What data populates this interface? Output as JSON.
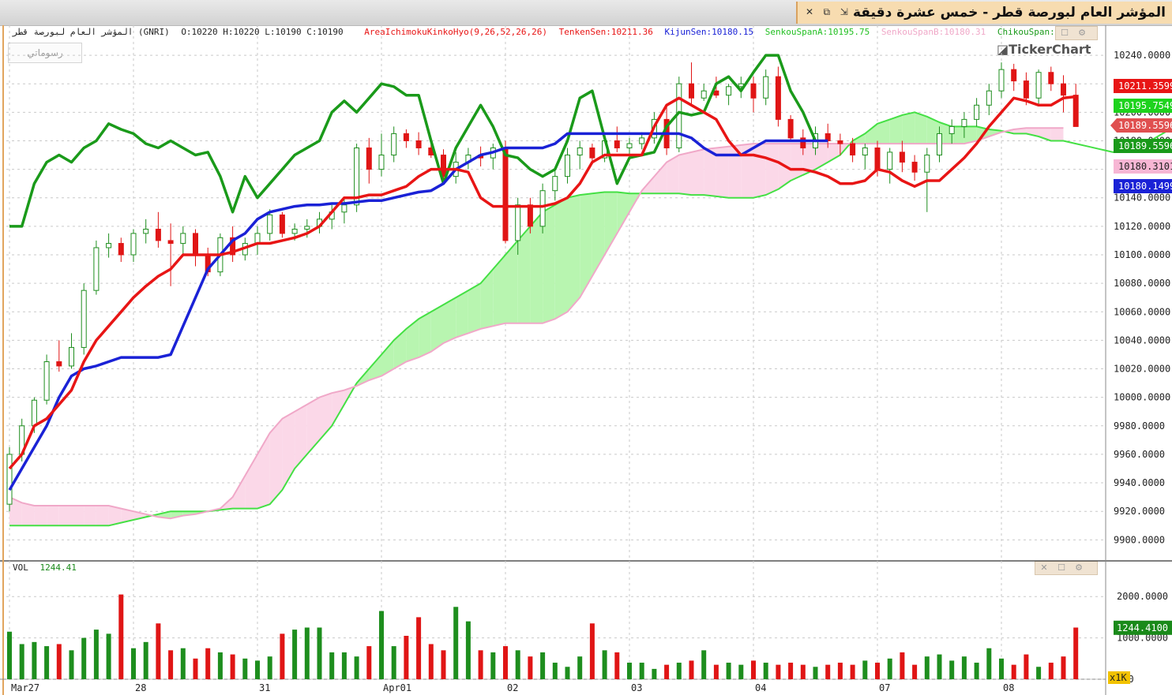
{
  "window": {
    "title": "المؤشر العام لبورصة قطر - خمس عشرة دقيقة",
    "buttons": [
      "✕",
      "⧉",
      "⇲"
    ]
  },
  "legend": {
    "symbol": "المؤشر العام لبورصة قطر (GNRI)",
    "ohlc": "O:10220  H:10220  L:10190  C:10190",
    "indicator": "AreaIchimokuKinkoHyo(9,26,52,26,26)",
    "tenkan": "TenkenSen:10211.36",
    "kijun": "KijunSen:10180.15",
    "spanA": "SenkouSpanA:10195.75",
    "spanB": "SenkouSpanB:10180.31",
    "chikou": "ChikouSpan:10"
  },
  "drawings_button": "رسوماتي",
  "brand": "TickerChart",
  "volume_label": {
    "name": "VOL",
    "value": "1244.41"
  },
  "multiplier_badge": "x1K",
  "colors": {
    "tenkan": "#e81515",
    "kijun": "#1a22d6",
    "spanA": "#22a722",
    "spanB": "#f0a8c8",
    "chikou": "#1a9a1a",
    "up": "#1e8e1e",
    "down": "#e01515",
    "cloud_bull": "#b8f5b0",
    "cloud_bear": "#fbd8e8"
  },
  "chart_data": {
    "type": "candlestick",
    "title": "",
    "y_axis": {
      "ticks": [
        "9900.0000",
        "9920.0000",
        "9940.0000",
        "9960.0000",
        "9980.0000",
        "10000.0000",
        "10020.0000",
        "10040.0000",
        "10060.0000",
        "10080.0000",
        "10100.0000",
        "10120.0000",
        "10140.0000",
        "10160.0000",
        "10180.0000",
        "10200.0000",
        "10220.0000",
        "10240.0000"
      ],
      "ylim": [
        9888,
        10250
      ]
    },
    "x_axis": {
      "labels": [
        "Mar27",
        "28",
        "31",
        "Apr01",
        "02",
        "03",
        "04",
        "07",
        "08"
      ],
      "label_index": [
        0,
        10,
        20,
        30,
        40,
        50,
        60,
        70,
        80
      ]
    },
    "value_badges": [
      {
        "value": "10211.3599",
        "color": "#e81515"
      },
      {
        "value": "10195.7549",
        "color": "#1dd31d"
      },
      {
        "value": "10189.5596",
        "color": "#e05050"
      },
      {
        "value": "10189.5596",
        "color": "#1a9a1a"
      },
      {
        "value": "10180.3101",
        "color": "#f7b6d4"
      },
      {
        "value": "10180.1499",
        "color": "#1a22d6"
      }
    ],
    "candles": [
      [
        9925,
        9965,
        9920,
        9960
      ],
      [
        9960,
        9985,
        9955,
        9980
      ],
      [
        9980,
        10000,
        9975,
        9998
      ],
      [
        9998,
        10030,
        9995,
        10025
      ],
      [
        10025,
        10040,
        10018,
        10022
      ],
      [
        10022,
        10045,
        10020,
        10035
      ],
      [
        10035,
        10080,
        10030,
        10075
      ],
      [
        10075,
        10110,
        10072,
        10105
      ],
      [
        10105,
        10115,
        10098,
        10108
      ],
      [
        10108,
        10112,
        10095,
        10100
      ],
      [
        10100,
        10118,
        10095,
        10115
      ],
      [
        10115,
        10125,
        10108,
        10118
      ],
      [
        10118,
        10130,
        10105,
        10110
      ],
      [
        10110,
        10122,
        10078,
        10108
      ],
      [
        10108,
        10120,
        10100,
        10115
      ],
      [
        10115,
        10118,
        10092,
        10100
      ],
      [
        10100,
        10105,
        10085,
        10088
      ],
      [
        10088,
        10115,
        10085,
        10112
      ],
      [
        10112,
        10120,
        10095,
        10100
      ],
      [
        10100,
        10112,
        10096,
        10108
      ],
      [
        10108,
        10120,
        10100,
        10115
      ],
      [
        10115,
        10132,
        10110,
        10128
      ],
      [
        10128,
        10130,
        10112,
        10115
      ],
      [
        10115,
        10122,
        10110,
        10118
      ],
      [
        10118,
        10125,
        10112,
        10120
      ],
      [
        10120,
        10130,
        10115,
        10125
      ],
      [
        10125,
        10135,
        10118,
        10130
      ],
      [
        10130,
        10140,
        10122,
        10135
      ],
      [
        10135,
        10178,
        10130,
        10175
      ],
      [
        10175,
        10182,
        10150,
        10160
      ],
      [
        10160,
        10185,
        10155,
        10170
      ],
      [
        10170,
        10190,
        10165,
        10185
      ],
      [
        10185,
        10188,
        10175,
        10180
      ],
      [
        10180,
        10186,
        10170,
        10175
      ],
      [
        10175,
        10180,
        10168,
        10170
      ],
      [
        10170,
        10174,
        10150,
        10155
      ],
      [
        10155,
        10172,
        10150,
        10165
      ],
      [
        10165,
        10175,
        10160,
        10170
      ],
      [
        10170,
        10176,
        10162,
        10168
      ],
      [
        10168,
        10178,
        10160,
        10175
      ],
      [
        10175,
        10180,
        10108,
        10110
      ],
      [
        10110,
        10140,
        10100,
        10135
      ],
      [
        10135,
        10140,
        10115,
        10120
      ],
      [
        10120,
        10150,
        10115,
        10145
      ],
      [
        10145,
        10160,
        10138,
        10155
      ],
      [
        10155,
        10175,
        10150,
        10170
      ],
      [
        10170,
        10180,
        10160,
        10175
      ],
      [
        10175,
        10178,
        10165,
        10168
      ],
      [
        10168,
        10185,
        10165,
        10180
      ],
      [
        10180,
        10190,
        10172,
        10175
      ],
      [
        10175,
        10182,
        10170,
        10178
      ],
      [
        10178,
        10186,
        10174,
        10182
      ],
      [
        10182,
        10200,
        10178,
        10195
      ],
      [
        10195,
        10205,
        10170,
        10175
      ],
      [
        10175,
        10225,
        10172,
        10220
      ],
      [
        10220,
        10235,
        10205,
        10210
      ],
      [
        10210,
        10220,
        10208,
        10215
      ],
      [
        10215,
        10225,
        10210,
        10212
      ],
      [
        10212,
        10220,
        10205,
        10218
      ],
      [
        10218,
        10225,
        10210,
        10220
      ],
      [
        10220,
        10225,
        10200,
        10210
      ],
      [
        10210,
        10230,
        10205,
        10225
      ],
      [
        10225,
        10232,
        10190,
        10195
      ],
      [
        10195,
        10198,
        10180,
        10182
      ],
      [
        10182,
        10188,
        10170,
        10175
      ],
      [
        10175,
        10190,
        10170,
        10185
      ],
      [
        10185,
        10192,
        10175,
        10180
      ],
      [
        10180,
        10185,
        10170,
        10178
      ],
      [
        10178,
        10182,
        10165,
        10170
      ],
      [
        10170,
        10178,
        10160,
        10175
      ],
      [
        10175,
        10180,
        10155,
        10160
      ],
      [
        10160,
        10175,
        10150,
        10172
      ],
      [
        10172,
        10180,
        10158,
        10165
      ],
      [
        10165,
        10170,
        10152,
        10158
      ],
      [
        10158,
        10175,
        10130,
        10170
      ],
      [
        10170,
        10190,
        10165,
        10185
      ],
      [
        10185,
        10195,
        10178,
        10190
      ],
      [
        10190,
        10200,
        10182,
        10195
      ],
      [
        10195,
        10210,
        10190,
        10205
      ],
      [
        10205,
        10220,
        10198,
        10215
      ],
      [
        10215,
        10235,
        10210,
        10230
      ],
      [
        10230,
        10234,
        10215,
        10222
      ],
      [
        10222,
        10228,
        10205,
        10210
      ],
      [
        10210,
        10230,
        10205,
        10228
      ],
      [
        10228,
        10232,
        10215,
        10220
      ],
      [
        10220,
        10226,
        10200,
        10212
      ],
      [
        10212,
        10220,
        10190,
        10190
      ]
    ],
    "tenkan": [
      9950,
      9960,
      9980,
      9985,
      9995,
      10005,
      10025,
      10040,
      10050,
      10060,
      10070,
      10078,
      10085,
      10090,
      10100,
      10100,
      10100,
      10100,
      10102,
      10105,
      10108,
      10108,
      10110,
      10112,
      10115,
      10120,
      10130,
      10140,
      10140,
      10142,
      10142,
      10145,
      10148,
      10155,
      10160,
      10160,
      10160,
      10158,
      10140,
      10134,
      10134,
      10134,
      10134,
      10134,
      10136,
      10140,
      10150,
      10165,
      10170,
      10170,
      10170,
      10170,
      10190,
      10205,
      10210,
      10205,
      10200,
      10195,
      10180,
      10170,
      10170,
      10168,
      10165,
      10160,
      10160,
      10158,
      10155,
      10150,
      10150,
      10152,
      10160,
      10158,
      10152,
      10148,
      10152,
      10152,
      10160,
      10168,
      10178,
      10190,
      10200,
      10210,
      10208,
      10205,
      10205,
      10210,
      10211
    ],
    "kijun": [
      9935,
      9950,
      9965,
      9980,
      10000,
      10015,
      10020,
      10022,
      10025,
      10028,
      10028,
      10028,
      10028,
      10030,
      10050,
      10070,
      10090,
      10100,
      10110,
      10115,
      10125,
      10130,
      10132,
      10134,
      10135,
      10135,
      10136,
      10136,
      10137,
      10138,
      10138,
      10140,
      10142,
      10144,
      10145,
      10150,
      10160,
      10165,
      10170,
      10172,
      10175,
      10175,
      10175,
      10175,
      10178,
      10185,
      10185,
      10185,
      10185,
      10185,
      10185,
      10185,
      10185,
      10185,
      10185,
      10182,
      10175,
      10170,
      10170,
      10170,
      10175,
      10180,
      10180,
      10180,
      10180,
      10180,
      10180
    ],
    "chikou": [
      10120,
      10120,
      10150,
      10165,
      10170,
      10165,
      10175,
      10180,
      10192,
      10188,
      10185,
      10178,
      10175,
      10180,
      10175,
      10170,
      10172,
      10155,
      10130,
      10155,
      10140,
      10150,
      10160,
      10170,
      10175,
      10180,
      10200,
      10208,
      10200,
      10210,
      10220,
      10218,
      10212,
      10212,
      10180,
      10150,
      10175,
      10190,
      10205,
      10190,
      10170,
      10168,
      10160,
      10155,
      10160,
      10180,
      10210,
      10215,
      10182,
      10150,
      10168,
      10170,
      10172,
      10190,
      10200,
      10198,
      10200,
      10220,
      10225,
      10215,
      10228,
      10240,
      10240,
      10215,
      10200,
      10180
    ],
    "spanA": [
      9910,
      9910,
      9910,
      9910,
      9910,
      9910,
      9910,
      9910,
      9910,
      9912,
      9914,
      9916,
      9918,
      9920,
      9920,
      9920,
      9920,
      9921,
      9922,
      9922,
      9922,
      9925,
      9935,
      9950,
      9960,
      9970,
      9980,
      9995,
      10010,
      10020,
      10030,
      10040,
      10048,
      10055,
      10060,
      10065,
      10070,
      10075,
      10080,
      10090,
      10100,
      10110,
      10120,
      10130,
      10135,
      10140,
      10142,
      10143,
      10144,
      10144,
      10143,
      10143,
      10143,
      10143,
      10143,
      10142,
      10142,
      10141,
      10140,
      10140,
      10140,
      10142,
      10146,
      10152,
      10156,
      10160,
      10165,
      10170,
      10180,
      10185,
      10192,
      10195,
      10198,
      10200,
      10197,
      10193,
      10190,
      10190,
      10190,
      10188,
      10187,
      10185,
      10185,
      10183,
      10180,
      10180,
      10178,
      10176,
      10174,
      10172,
      10174,
      10176,
      10180,
      10185,
      10190,
      10195
    ],
    "spanB": [
      9930,
      9926,
      9924,
      9924,
      9924,
      9924,
      9924,
      9924,
      9924,
      9922,
      9920,
      9918,
      9916,
      9915,
      9917,
      9918,
      9920,
      9922,
      9930,
      9945,
      9960,
      9975,
      9985,
      9990,
      9995,
      10000,
      10003,
      10005,
      10008,
      10012,
      10015,
      10020,
      10025,
      10028,
      10032,
      10038,
      10042,
      10045,
      10048,
      10050,
      10052,
      10052,
      10052,
      10052,
      10055,
      10060,
      10070,
      10085,
      10100,
      10115,
      10130,
      10145,
      10155,
      10165,
      10170,
      10172,
      10174,
      10175,
      10176,
      10177,
      10178,
      10178,
      10178,
      10178,
      10178,
      10178,
      10178,
      10178,
      10178,
      10178,
      10178,
      10178,
      10178,
      10178,
      10178,
      10178,
      10178,
      10178,
      10180,
      10183,
      10186,
      10188,
      10189,
      10189,
      10189,
      10189
    ],
    "volume": {
      "ticks": [
        "2000.0000",
        "1000.0000",
        "000"
      ],
      "ylim": [
        0,
        2500
      ],
      "values": [
        1150,
        850,
        900,
        800,
        850,
        700,
        1000,
        1200,
        1100,
        2050,
        750,
        900,
        1350,
        700,
        750,
        500,
        750,
        650,
        600,
        500,
        450,
        550,
        1100,
        1200,
        1250,
        1250,
        650,
        650,
        550,
        800,
        1650,
        800,
        1050,
        1500,
        850,
        700,
        1750,
        1400,
        700,
        650,
        800,
        700,
        550,
        650,
        400,
        300,
        550,
        1350,
        700,
        650,
        400,
        400,
        250,
        350,
        400,
        450,
        700,
        350,
        400,
        350,
        450,
        400,
        350,
        400,
        350,
        300,
        350,
        400,
        350,
        450,
        400,
        500,
        650,
        350,
        550,
        600,
        450,
        550,
        400,
        750,
        500,
        350,
        600,
        300,
        400,
        550,
        1250
      ]
    }
  }
}
